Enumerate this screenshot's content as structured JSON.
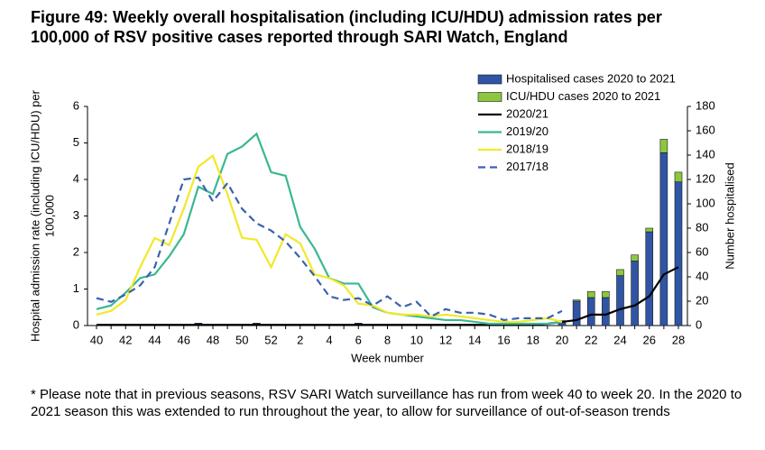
{
  "chart_data": {
    "type": "bar-line",
    "title": "Figure 49: Weekly overall hospitalisation (including ICU/HDU) admission rates per 100,000 of RSV positive cases reported through SARI Watch, England",
    "note": "* Please note that in previous seasons, RSV SARI Watch surveillance has run from week 40 to week 20. In the 2020 to 2021 season this was extended to run throughout the year, to allow for surveillance of out-of-season trends",
    "xlabel": "Week number",
    "ylabel": [
      "Hospital admission rate (including ICU/HDU) per",
      "100,000"
    ],
    "y2label": "Number hospitalised",
    "categories": [
      "40",
      null,
      "42",
      null,
      "44",
      null,
      "46",
      null,
      "48",
      null,
      "50",
      null,
      "52",
      null,
      "2",
      null,
      "4",
      null,
      "6",
      null,
      "8",
      null,
      "10",
      null,
      "12",
      null,
      "14",
      null,
      "16",
      null,
      "18",
      null,
      "20",
      null,
      "22",
      null,
      "24",
      null,
      "26",
      null,
      "28"
    ],
    "ylim": [
      0,
      6
    ],
    "yticks": [
      0,
      1,
      2,
      3,
      4,
      5,
      6
    ],
    "y2lim": [
      0,
      180
    ],
    "y2ticks": [
      0,
      20,
      40,
      60,
      80,
      100,
      120,
      140,
      160,
      180
    ],
    "series": [
      {
        "name": "Hospitalised cases 2020 to 2021",
        "kind": "bar",
        "axis": "y2",
        "color": "#2f55a4",
        "values": [
          0,
          0,
          0,
          0,
          0,
          0,
          0,
          2,
          0,
          0,
          0,
          2,
          0,
          0,
          0,
          0,
          0,
          0,
          2,
          0,
          0,
          0,
          0,
          0,
          0,
          0,
          0,
          0,
          0,
          0,
          0,
          0,
          3,
          20,
          23,
          23,
          41,
          53,
          77,
          142,
          118
        ]
      },
      {
        "name": "ICU/HDU cases 2020 to 2021",
        "kind": "bar",
        "axis": "y2",
        "color": "#8dc63f",
        "values": [
          0,
          0,
          0,
          0,
          0,
          0,
          0,
          0,
          0,
          0,
          0,
          0,
          0,
          0,
          0,
          0,
          0,
          0,
          0,
          0,
          0,
          0,
          0,
          0,
          0,
          0,
          0,
          0,
          0,
          0,
          0,
          0,
          1,
          1,
          5,
          5,
          5,
          5,
          3,
          11,
          8
        ]
      },
      {
        "name": "2020/21",
        "kind": "line",
        "color": "#000000",
        "values": [
          0.02,
          0.02,
          0.02,
          0.02,
          0.02,
          0.02,
          0.02,
          0.02,
          0.02,
          0.02,
          0.02,
          0.02,
          0.02,
          0.02,
          0.02,
          0.02,
          0.02,
          0.02,
          0.02,
          0.02,
          0.02,
          0.02,
          0.02,
          0.02,
          0.02,
          0.02,
          0.02,
          0.02,
          0.02,
          0.02,
          0.02,
          0.05,
          0.1,
          0.15,
          0.3,
          0.3,
          0.45,
          0.55,
          0.8,
          1.4,
          1.6
        ]
      },
      {
        "name": "2019/20",
        "kind": "line",
        "color": "#3ab795",
        "values": [
          0.45,
          0.55,
          0.9,
          1.3,
          1.4,
          1.9,
          2.5,
          3.8,
          3.6,
          4.7,
          4.9,
          5.25,
          4.2,
          4.1,
          2.7,
          2.1,
          1.3,
          1.15,
          1.15,
          0.5,
          0.35,
          0.3,
          0.25,
          0.2,
          0.15,
          0.15,
          0.1,
          0.05,
          0.05,
          0.05,
          0.05,
          0.05,
          0.1,
          null,
          null,
          null,
          null,
          null,
          null,
          null,
          null
        ]
      },
      {
        "name": "2018/19",
        "kind": "line",
        "color": "#f2e829",
        "values": [
          0.3,
          0.4,
          0.7,
          1.6,
          2.4,
          2.2,
          3.2,
          4.35,
          4.65,
          3.6,
          2.4,
          2.35,
          1.6,
          2.5,
          2.25,
          1.4,
          1.3,
          1.1,
          0.6,
          0.55,
          0.35,
          0.3,
          0.3,
          0.25,
          0.3,
          0.25,
          0.2,
          0.15,
          0.1,
          0.1,
          0.15,
          0.2,
          0.1,
          null,
          null,
          null,
          null,
          null,
          null,
          null,
          null
        ]
      },
      {
        "name": "2017/18",
        "kind": "line",
        "dashed": true,
        "color": "#3a62b0",
        "values": [
          0.75,
          0.65,
          0.85,
          1.1,
          1.6,
          2.8,
          4.0,
          4.05,
          3.4,
          3.9,
          3.2,
          2.8,
          2.6,
          2.3,
          1.85,
          1.35,
          0.8,
          0.7,
          0.75,
          0.55,
          0.8,
          0.5,
          0.65,
          0.25,
          0.45,
          0.35,
          0.35,
          0.3,
          0.15,
          0.2,
          0.2,
          0.2,
          0.4,
          null,
          null,
          null,
          null,
          null,
          null,
          null,
          null
        ]
      }
    ]
  }
}
